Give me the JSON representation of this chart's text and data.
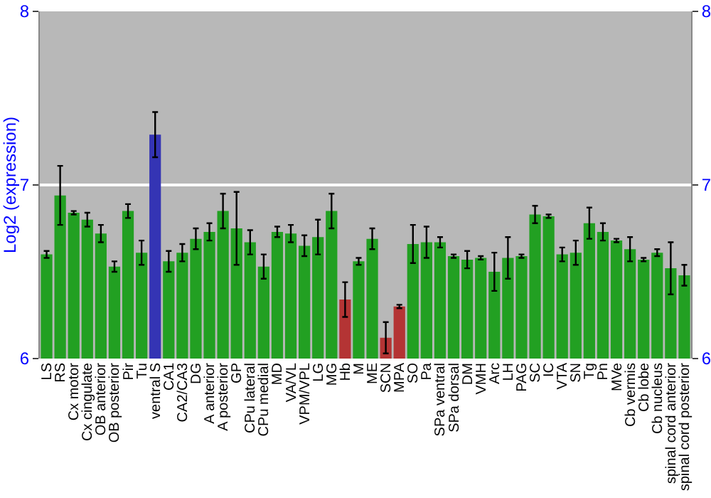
{
  "chart_data": {
    "type": "bar",
    "ylabel": "Log2 (expression)",
    "categories": [
      "LS",
      "RS",
      "Cx motor",
      "Cx cingulate",
      "OB anterior",
      "OB posterior",
      "Pir",
      "Tu",
      "ventral S",
      "CA1",
      "CA2/CA3",
      "DG",
      "A anterior",
      "A posterior",
      "GP",
      "CPu lateral",
      "CPu medial",
      "MD",
      "VA/VL",
      "VPM/VPL",
      "LG",
      "MG",
      "Hb",
      "M",
      "ME",
      "SCN",
      "MPA",
      "SO",
      "Pa",
      "SPa ventral",
      "SPa dorsal",
      "DM",
      "VMH",
      "Arc",
      "LH",
      "PAG",
      "SC",
      "IC",
      "VTA",
      "SN",
      "Tg",
      "Pn",
      "MVe",
      "Cb vermis",
      "Cb lobe",
      "Cb nucleus",
      "spinal cord anterior",
      "spinal cord posterior"
    ],
    "values": [
      6.6,
      6.94,
      6.84,
      6.8,
      6.72,
      6.53,
      6.85,
      6.61,
      7.29,
      6.56,
      6.61,
      6.69,
      6.73,
      6.85,
      6.75,
      6.67,
      6.53,
      6.73,
      6.72,
      6.65,
      6.7,
      6.85,
      6.34,
      6.56,
      6.69,
      6.12,
      6.3,
      6.66,
      6.67,
      6.67,
      6.59,
      6.57,
      6.58,
      6.5,
      6.58,
      6.59,
      6.83,
      6.82,
      6.6,
      6.61,
      6.78,
      6.73,
      6.68,
      6.63,
      6.57,
      6.61,
      6.52,
      6.48
    ],
    "errors": [
      0.02,
      0.17,
      0.01,
      0.04,
      0.05,
      0.03,
      0.04,
      0.07,
      0.13,
      0.06,
      0.05,
      0.06,
      0.05,
      0.1,
      0.21,
      0.07,
      0.07,
      0.03,
      0.05,
      0.06,
      0.1,
      0.1,
      0.1,
      0.02,
      0.06,
      0.09,
      0.01,
      0.11,
      0.09,
      0.03,
      0.01,
      0.05,
      0.01,
      0.11,
      0.12,
      0.01,
      0.05,
      0.01,
      0.04,
      0.07,
      0.09,
      0.05,
      0.01,
      0.07,
      0.01,
      0.02,
      0.15,
      0.06
    ],
    "colors": [
      "#22a022",
      "#22a022",
      "#22a022",
      "#22a022",
      "#22a022",
      "#22a022",
      "#22a022",
      "#22a022",
      "#3434b4",
      "#22a022",
      "#22a022",
      "#22a022",
      "#22a022",
      "#22a022",
      "#22a022",
      "#22a022",
      "#22a022",
      "#22a022",
      "#22a022",
      "#22a022",
      "#22a022",
      "#22a022",
      "#b43434",
      "#22a022",
      "#22a022",
      "#b43434",
      "#b43434",
      "#22a022",
      "#22a022",
      "#22a022",
      "#22a022",
      "#22a022",
      "#22a022",
      "#22a022",
      "#22a022",
      "#22a022",
      "#22a022",
      "#22a022",
      "#22a022",
      "#22a022",
      "#22a022",
      "#22a022",
      "#22a022",
      "#22a022",
      "#22a022",
      "#22a022",
      "#22a022",
      "#22a022"
    ],
    "ylim": [
      6,
      8
    ],
    "yticks": [
      6,
      7,
      8
    ],
    "y2lim": [
      6,
      8
    ],
    "y2ticks": [
      6,
      7,
      8
    ],
    "grid": "y"
  }
}
